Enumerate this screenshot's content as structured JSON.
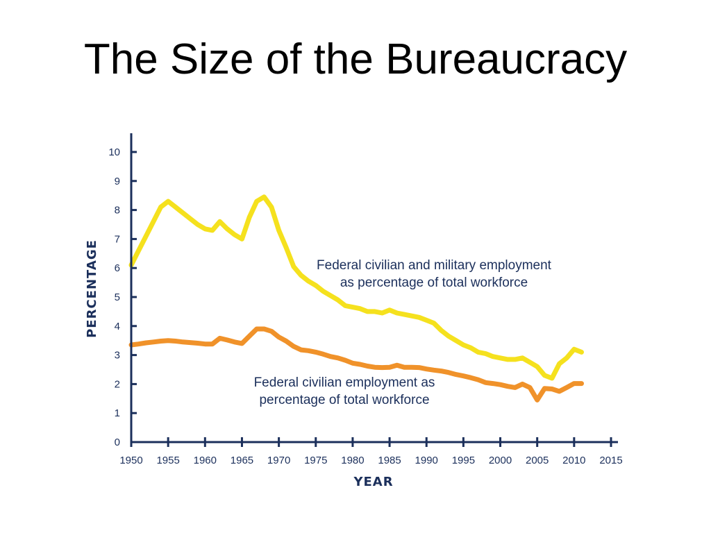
{
  "slide": {
    "title": "The Size of the Bureaucracy"
  },
  "chart_data": {
    "type": "line",
    "title": "",
    "xlabel": "YEAR",
    "ylabel": "PERCENTAGE",
    "xlim": [
      1950,
      2015
    ],
    "ylim": [
      0,
      10
    ],
    "xticks": [
      1950,
      1955,
      1960,
      1965,
      1970,
      1975,
      1980,
      1985,
      1990,
      1995,
      2000,
      2005,
      2010,
      2015
    ],
    "yticks": [
      0,
      1,
      2,
      3,
      4,
      5,
      6,
      7,
      8,
      9,
      10
    ],
    "grid": false,
    "legend": "none",
    "series": [
      {
        "name": "Federal civilian and military employment as percentage of total workforce",
        "annotation_lines": [
          "Federal civilian and military employment",
          "as percentage of total workforce"
        ],
        "color": "#f5e11e",
        "x": [
          1950,
          1951,
          1952,
          1953,
          1954,
          1955,
          1956,
          1957,
          1958,
          1959,
          1960,
          1961,
          1962,
          1963,
          1964,
          1965,
          1966,
          1967,
          1968,
          1969,
          1970,
          1971,
          1972,
          1973,
          1974,
          1975,
          1976,
          1977,
          1978,
          1979,
          1980,
          1981,
          1982,
          1983,
          1984,
          1985,
          1986,
          1987,
          1988,
          1989,
          1990,
          1991,
          1992,
          1993,
          1994,
          1995,
          1996,
          1997,
          1998,
          1999,
          2000,
          2001,
          2002,
          2003,
          2004,
          2005,
          2006,
          2007,
          2008,
          2009,
          2010,
          2011
        ],
        "y": [
          6.1,
          6.6,
          7.1,
          7.6,
          8.1,
          8.3,
          8.1,
          7.9,
          7.7,
          7.5,
          7.35,
          7.3,
          7.6,
          7.35,
          7.15,
          7.0,
          7.75,
          8.3,
          8.45,
          8.1,
          7.3,
          6.7,
          6.05,
          5.75,
          5.55,
          5.4,
          5.2,
          5.05,
          4.9,
          4.7,
          4.65,
          4.6,
          4.5,
          4.5,
          4.45,
          4.55,
          4.45,
          4.4,
          4.35,
          4.3,
          4.2,
          4.1,
          3.85,
          3.65,
          3.5,
          3.35,
          3.25,
          3.1,
          3.05,
          2.95,
          2.9,
          2.85,
          2.85,
          2.9,
          2.75,
          2.6,
          2.3,
          2.2,
          2.7,
          2.9,
          3.2,
          3.1
        ]
      },
      {
        "name": "Federal civilian employment as percentage of total workforce",
        "annotation_lines": [
          "Federal civilian employment as",
          "percentage of total workforce"
        ],
        "color": "#f0922a",
        "x": [
          1950,
          1951,
          1952,
          1953,
          1954,
          1955,
          1956,
          1957,
          1958,
          1959,
          1960,
          1961,
          1962,
          1963,
          1964,
          1965,
          1966,
          1967,
          1968,
          1969,
          1970,
          1971,
          1972,
          1973,
          1974,
          1975,
          1976,
          1977,
          1978,
          1979,
          1980,
          1981,
          1982,
          1983,
          1984,
          1985,
          1986,
          1987,
          1988,
          1989,
          1990,
          1991,
          1992,
          1993,
          1994,
          1995,
          1996,
          1997,
          1998,
          1999,
          2000,
          2001,
          2002,
          2003,
          2004,
          2005,
          2006,
          2007,
          2008,
          2009,
          2010,
          2011
        ],
        "y": [
          3.35,
          3.38,
          3.42,
          3.45,
          3.48,
          3.5,
          3.48,
          3.45,
          3.43,
          3.41,
          3.38,
          3.38,
          3.58,
          3.52,
          3.45,
          3.4,
          3.65,
          3.9,
          3.9,
          3.82,
          3.62,
          3.48,
          3.3,
          3.18,
          3.15,
          3.1,
          3.03,
          2.95,
          2.9,
          2.82,
          2.72,
          2.68,
          2.62,
          2.58,
          2.57,
          2.58,
          2.65,
          2.58,
          2.58,
          2.57,
          2.52,
          2.48,
          2.45,
          2.4,
          2.33,
          2.28,
          2.22,
          2.15,
          2.05,
          2.02,
          1.98,
          1.92,
          1.88,
          2.0,
          1.88,
          1.45,
          1.85,
          1.83,
          1.75,
          1.88,
          2.02,
          2.02
        ]
      }
    ]
  }
}
